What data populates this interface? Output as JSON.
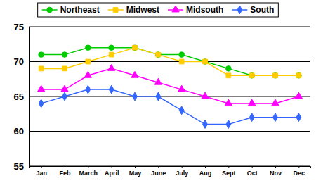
{
  "chart_data": {
    "type": "line",
    "categories": [
      "Jan",
      "Feb",
      "March",
      "April",
      "May",
      "June",
      "July",
      "Aug",
      "Sept",
      "Oct",
      "Nov",
      "Dec"
    ],
    "series": [
      {
        "name": "Northeast",
        "color": "#00cc00",
        "marker": "circle",
        "values": [
          71,
          71,
          72,
          72,
          72,
          71,
          71,
          70,
          69,
          68,
          68,
          68
        ]
      },
      {
        "name": "Midwest",
        "color": "#ffcc00",
        "marker": "square",
        "values": [
          69,
          69,
          70,
          71,
          72,
          71,
          70,
          70,
          68,
          68,
          68,
          68
        ]
      },
      {
        "name": "Midsouth",
        "color": "#ff00ff",
        "marker": "triangle",
        "values": [
          66,
          66,
          68,
          69,
          68,
          67,
          66,
          65,
          64,
          64,
          64,
          65
        ]
      },
      {
        "name": "South",
        "color": "#3366ff",
        "marker": "diamond",
        "values": [
          64,
          65,
          66,
          66,
          65,
          65,
          63,
          61,
          61,
          62,
          62,
          62
        ]
      }
    ],
    "ylim": [
      55,
      75
    ],
    "yticks": [
      55,
      60,
      65,
      70,
      75
    ],
    "grid": true,
    "legend": "top"
  }
}
